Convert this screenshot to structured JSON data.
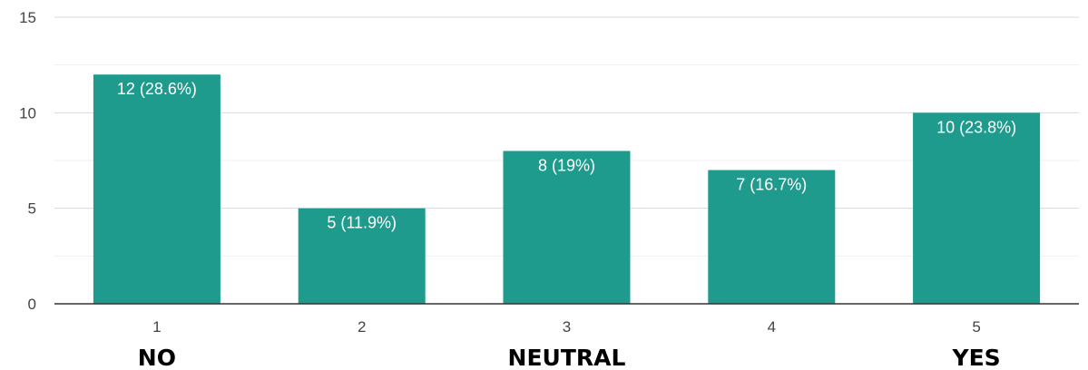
{
  "chart_data": {
    "type": "bar",
    "categories": [
      "1",
      "2",
      "3",
      "4",
      "5"
    ],
    "values": [
      12,
      5,
      8,
      7,
      10
    ],
    "data_labels": [
      "12 (28.6%)",
      "5 (11.9%)",
      "8 (19%)",
      "7 (16.7%)",
      "10 (23.8%)"
    ],
    "y_ticks": [
      "0",
      "5",
      "10",
      "15"
    ],
    "ylim": [
      0,
      15
    ],
    "grid": true,
    "bar_color": "#1f9b8e",
    "scale_labels": [
      {
        "category": "1",
        "text": "NO"
      },
      {
        "category": "3",
        "text": "NEUTRAL"
      },
      {
        "category": "5",
        "text": "YES"
      }
    ]
  }
}
